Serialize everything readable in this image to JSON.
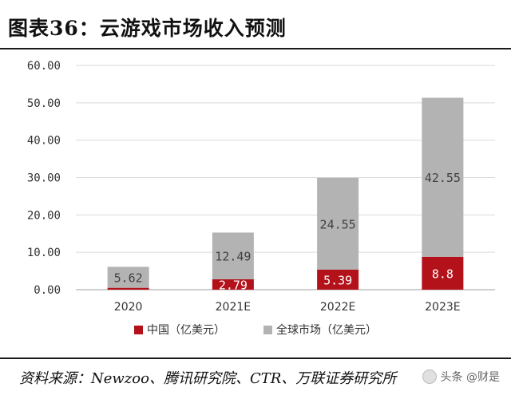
{
  "header": {
    "title": "图表36：云游戏市场收入预测"
  },
  "footer": {
    "source": "资料来源：Newzoo、腾讯研究院、CTR、万联证券研究所"
  },
  "watermark": {
    "text": "头条 @财是"
  },
  "colors": {
    "china": "#b4121b",
    "global": "#b3b3b3",
    "axis": "#bfbfbf",
    "grid": "#d9d9d9"
  },
  "chart_data": {
    "type": "bar",
    "stacked": true,
    "title": "",
    "categories": [
      "2020",
      "2021E",
      "2022E",
      "2023E"
    ],
    "series": [
      {
        "name": "中国（亿美元）",
        "values": [
          0.5,
          2.79,
          5.39,
          8.8
        ],
        "labels": [
          "",
          "2.79",
          "5.39",
          "8.8"
        ],
        "color": "#b4121b"
      },
      {
        "name": "全球市场（亿美元）",
        "values": [
          5.62,
          12.49,
          24.55,
          42.55
        ],
        "labels": [
          "5.62",
          "12.49",
          "24.55",
          "42.55"
        ],
        "color": "#b3b3b3"
      }
    ],
    "ylim": [
      0,
      60
    ],
    "yticks": [
      "0.00",
      "10.00",
      "20.00",
      "30.00",
      "40.00",
      "50.00",
      "60.00"
    ],
    "grid": true,
    "legend_position": "bottom"
  }
}
